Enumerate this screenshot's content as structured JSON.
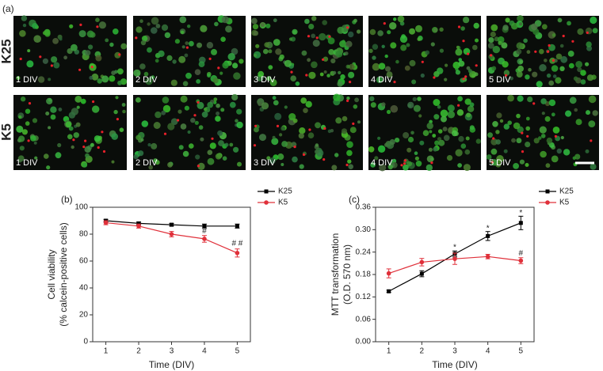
{
  "panel_a": {
    "label": "(a)",
    "rows": [
      {
        "name": "K25",
        "images": [
          "1 DIV",
          "2 DIV",
          "3 DIV",
          "4 DIV",
          "5 DIV"
        ]
      },
      {
        "name": "K5",
        "images": [
          "1 DIV",
          "2 DIV",
          "3 DIV",
          "4 DIV",
          "5 DIV"
        ]
      }
    ]
  },
  "chart_data": [
    {
      "type": "line",
      "label": "(b)",
      "ylabel": [
        "Cell viability",
        "(% calcein-positive cells)"
      ],
      "xlabel": "Time (DIV)",
      "x": [
        1,
        2,
        3,
        4,
        5
      ],
      "xlim": [
        0.6,
        5.4
      ],
      "xticks": [
        1,
        2,
        3,
        4,
        5
      ],
      "ylim": [
        0,
        100
      ],
      "yticks": [
        0,
        20,
        40,
        60,
        80,
        100
      ],
      "series": [
        {
          "name": "K25",
          "color": "#000000",
          "marker": "square",
          "values": [
            90,
            88,
            87,
            86,
            86
          ],
          "errors": [
            1,
            1,
            1,
            1.5,
            1.5
          ]
        },
        {
          "name": "K5",
          "color": "#e0303a",
          "marker": "circle",
          "values": [
            88.5,
            86,
            80,
            76.5,
            66
          ],
          "errors": [
            1.5,
            1.5,
            2,
            2.5,
            3
          ]
        }
      ],
      "annotations": [
        {
          "x": 4,
          "y": 82,
          "text": "#"
        },
        {
          "x": 5,
          "y": 73,
          "text": "# #"
        }
      ]
    },
    {
      "type": "line",
      "label": "(c)",
      "ylabel": [
        "MTT transformation",
        "(O.D. 570 nm)"
      ],
      "xlabel": "Time (DIV)",
      "x": [
        1,
        2,
        3,
        4,
        5
      ],
      "xlim": [
        0.6,
        5.4
      ],
      "xticks": [
        1,
        2,
        3,
        4,
        5
      ],
      "ylim": [
        0,
        0.36
      ],
      "yticks": [
        {
          "value": 0,
          "label": "0.00"
        },
        {
          "value": 0.06,
          "label": "0.06"
        },
        {
          "value": 0.12,
          "label": "0.12"
        },
        {
          "value": 0.18,
          "label": "0.18"
        },
        {
          "value": 0.24,
          "label": "0.24"
        },
        {
          "value": 0.3,
          "label": "0.30"
        },
        {
          "value": 0.36,
          "label": "0.36"
        }
      ],
      "series": [
        {
          "name": "K25",
          "color": "#000000",
          "marker": "square",
          "values": [
            0.135,
            0.182,
            0.235,
            0.283,
            0.318
          ],
          "errors": [
            0.003,
            0.008,
            0.008,
            0.012,
            0.018
          ]
        },
        {
          "name": "K5",
          "color": "#e0303a",
          "marker": "circle",
          "values": [
            0.183,
            0.213,
            0.222,
            0.228,
            0.217
          ],
          "errors": [
            0.012,
            0.01,
            0.015,
            0.006,
            0.008
          ]
        }
      ],
      "annotations": [
        {
          "x": 3,
          "y": 0.252,
          "text": "*"
        },
        {
          "x": 4,
          "y": 0.303,
          "text": "*"
        },
        {
          "x": 5,
          "y": 0.344,
          "text": "*"
        },
        {
          "x": 5,
          "y": 0.236,
          "text": "#"
        }
      ]
    }
  ]
}
